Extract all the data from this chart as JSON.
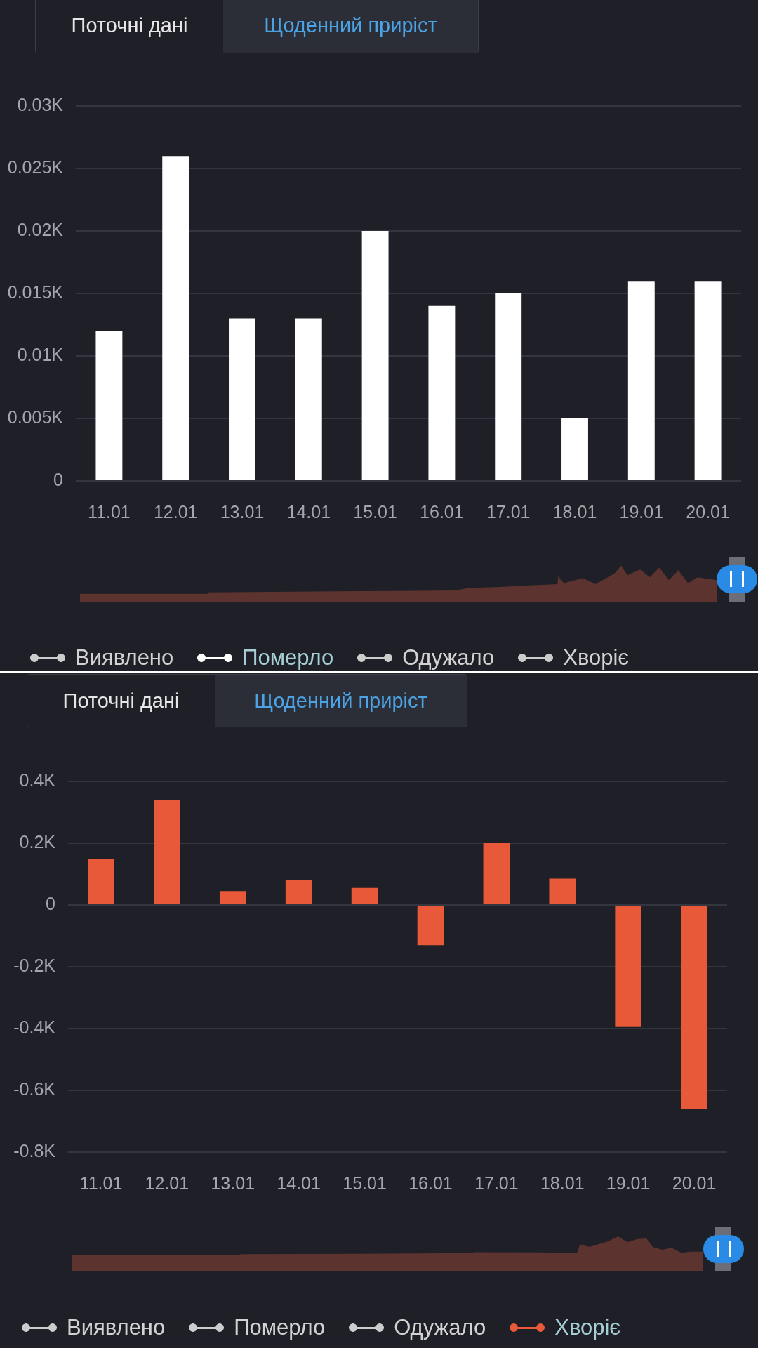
{
  "chart_data": [
    {
      "type": "bar",
      "annotations": [
        "Поточні дані",
        "Щоденний приріст"
      ],
      "categories": [
        "11.01",
        "12.01",
        "13.01",
        "14.01",
        "15.01",
        "16.01",
        "17.01",
        "18.01",
        "19.01",
        "20.01"
      ],
      "series": [
        {
          "name": "Виявлено",
          "color": "#cccccc",
          "values": [
            null,
            null,
            null,
            null,
            null,
            null,
            null,
            null,
            null,
            null
          ]
        },
        {
          "name": "Померло",
          "color": "#ffffff",
          "values": [
            12,
            26,
            13,
            13,
            20,
            14,
            15,
            5,
            16,
            16
          ]
        },
        {
          "name": "Одужало",
          "color": "#cccccc",
          "values": [
            null,
            null,
            null,
            null,
            null,
            null,
            null,
            null,
            null,
            null
          ]
        },
        {
          "name": "Хворіє",
          "color": "#cccccc",
          "values": [
            null,
            null,
            null,
            null,
            null,
            null,
            null,
            null,
            null,
            null
          ]
        }
      ],
      "ylim": [
        0,
        30
      ],
      "yticks": [
        0,
        {
          "value": 5,
          "label": "0.005K"
        },
        {
          "value": 10,
          "label": "0.01K"
        },
        {
          "value": 15,
          "label": "0.015K"
        },
        {
          "value": 20,
          "label": "0.02K"
        },
        {
          "value": 25,
          "label": "0.025K"
        },
        {
          "value": 30,
          "label": "0.03K"
        }
      ],
      "grid": "y",
      "legend": "bottom"
    },
    {
      "type": "bar",
      "annotations": [
        "Поточні дані",
        "Щоденний приріст"
      ],
      "categories": [
        "11.01",
        "12.01",
        "13.01",
        "14.01",
        "15.01",
        "16.01",
        "17.01",
        "18.01",
        "19.01",
        "20.01"
      ],
      "series": [
        {
          "name": "Виявлено",
          "color": "#cccccc",
          "values": [
            null,
            null,
            null,
            null,
            null,
            null,
            null,
            null,
            null,
            null
          ]
        },
        {
          "name": "Померло",
          "color": "#cccccc",
          "values": [
            null,
            null,
            null,
            null,
            null,
            null,
            null,
            null,
            null,
            null
          ]
        },
        {
          "name": "Одужало",
          "color": "#cccccc",
          "values": [
            null,
            null,
            null,
            null,
            null,
            null,
            null,
            null,
            null,
            null
          ]
        },
        {
          "name": "Хворіє",
          "color": "#e8593a",
          "values": [
            150,
            340,
            45,
            80,
            55,
            -130,
            200,
            85,
            -395,
            -660
          ]
        }
      ],
      "ylim": [
        -800,
        400
      ],
      "yticks": [
        {
          "value": -800,
          "label": "-0.8K"
        },
        {
          "value": -600,
          "label": "-0.6K"
        },
        {
          "value": -400,
          "label": "-0.4K"
        },
        {
          "value": -200,
          "label": "-0.2K"
        },
        0,
        {
          "value": 200,
          "label": "0.2K"
        },
        {
          "value": 400,
          "label": "0.4K"
        }
      ],
      "grid": "y",
      "legend": "bottom"
    }
  ]
}
